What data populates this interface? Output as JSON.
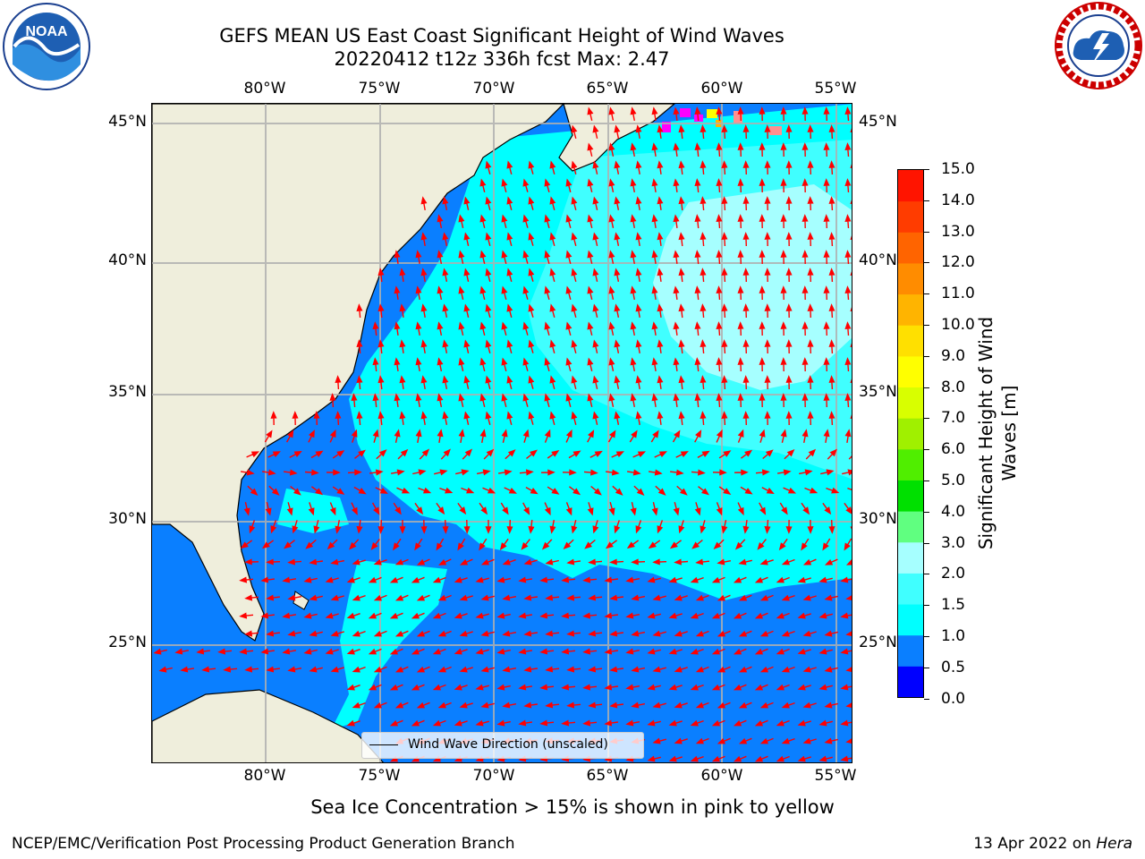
{
  "title": {
    "line1": "GEFS MEAN US East Coast Significant Height of Wind Waves",
    "line2": "20220412 t12z 336h fcst   Max: 2.47"
  },
  "logos": {
    "left": "NOAA",
    "right": "NATIONAL WEATHER SERVICE"
  },
  "map": {
    "lon_labels": [
      "80°W",
      "75°W",
      "70°W",
      "65°W",
      "60°W",
      "55°W"
    ],
    "lat_labels": [
      "45°N",
      "40°N",
      "35°N",
      "30°N",
      "25°N"
    ],
    "lon_range": [
      -85,
      -54.5
    ],
    "lat_range": [
      20.5,
      46.5
    ],
    "legend": "Wind Wave Direction (unscaled)",
    "colors": {
      "land": "#efeedc",
      "arrow": "#ff0000",
      "grid": "#b0b0b0"
    }
  },
  "colorbar": {
    "ticks": [
      "15.0",
      "14.0",
      "13.0",
      "12.0",
      "11.0",
      "10.0",
      "9.0",
      "8.0",
      "7.0",
      "6.0",
      "5.0",
      "4.0",
      "3.0",
      "2.0",
      "1.5",
      "1.0",
      "0.5",
      "0.0"
    ],
    "label_line1": "Significant Height of Wind",
    "label_line2": "Waves [m]",
    "colors": [
      "#0000ff",
      "#0a7fff",
      "#00ffff",
      "#40ffff",
      "#a6ffff",
      "#60ff80",
      "#00e000",
      "#50ee00",
      "#a0f000",
      "#d8ff00",
      "#ffff00",
      "#ffe000",
      "#ffb400",
      "#ff8c00",
      "#ff6400",
      "#ff3c00",
      "#ff1400"
    ]
  },
  "footnote": "Sea Ice Concentration > 15% is shown in pink to yellow",
  "credit_left": "NCEP/EMC/Verification Post Processing Product Generation Branch",
  "credit_right_text": "13 Apr 2022 on ",
  "credit_right_host": "Hera"
}
